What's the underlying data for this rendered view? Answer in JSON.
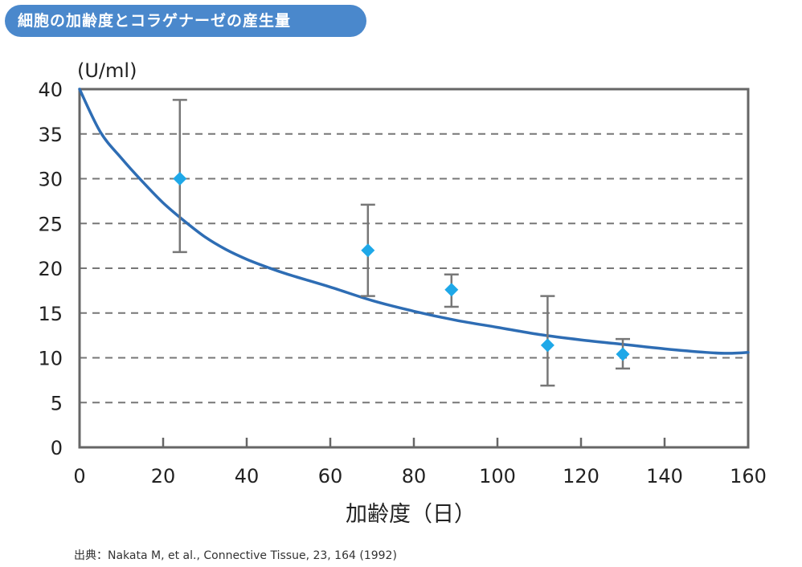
{
  "title": "細胞の加齢度とコラゲナーゼの産生量",
  "source": "出典：Nakata M, et al., Connective Tissue, 23, 164 (1992)",
  "chart_data": {
    "type": "scatter",
    "ylabel": "(U/ml)",
    "xlabel": "加齢度（日）",
    "xlim": [
      0,
      160
    ],
    "ylim": [
      0,
      40
    ],
    "x_ticks": [
      0,
      20,
      40,
      60,
      80,
      100,
      120,
      140,
      160
    ],
    "y_ticks": [
      0,
      5,
      10,
      15,
      20,
      25,
      30,
      35,
      40
    ],
    "grid": "horizontal-dashed",
    "series": [
      {
        "kind": "points-with-error-bars",
        "color": "#1ea8e8",
        "marker": "diamond",
        "points": [
          {
            "x": 24,
            "y": 30,
            "err_low": 21.8,
            "err_high": 38.8
          },
          {
            "x": 69,
            "y": 22,
            "err_low": 16.9,
            "err_high": 27.1
          },
          {
            "x": 89,
            "y": 17.6,
            "err_low": 15.7,
            "err_high": 19.3
          },
          {
            "x": 112,
            "y": 11.4,
            "err_low": 6.9,
            "err_high": 16.9
          },
          {
            "x": 130,
            "y": 10.4,
            "err_low": 8.8,
            "err_high": 12.1
          }
        ]
      },
      {
        "kind": "trend-curve",
        "color": "#2e6db4",
        "x": [
          0,
          5,
          10,
          15,
          20,
          25,
          30,
          35,
          40,
          45,
          50,
          60,
          70,
          80,
          90,
          100,
          110,
          120,
          130,
          140,
          150,
          155,
          160
        ],
        "y": [
          40,
          35.2,
          32.3,
          29.7,
          27.3,
          25.3,
          23.5,
          22.1,
          21.0,
          20.1,
          19.3,
          17.9,
          16.4,
          15.2,
          14.2,
          13.4,
          12.6,
          12.0,
          11.5,
          11.0,
          10.6,
          10.5,
          10.6
        ]
      }
    ],
    "colors": {
      "frame": "#666666",
      "grid": "#777777",
      "error_bar": "#777777"
    }
  }
}
